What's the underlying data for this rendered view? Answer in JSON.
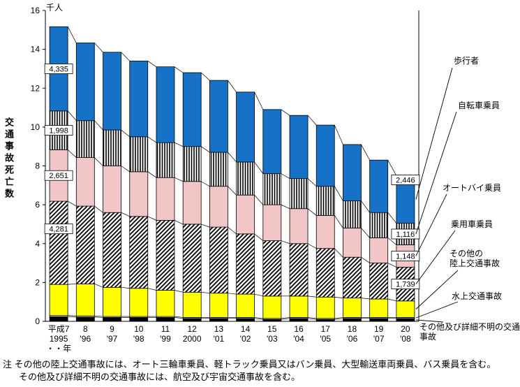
{
  "chart_data": {
    "type": "bar",
    "stacked": true,
    "unit_label": "千人",
    "ylabel": "交通事故死亡数",
    "ylim": [
      0,
      16
    ],
    "ytick_step": 2,
    "value_unit": "persons",
    "categories": [
      {
        "lines": [
          "平成7",
          "1995",
          "・・年"
        ]
      },
      {
        "lines": [
          "8",
          "'96"
        ]
      },
      {
        "lines": [
          "9",
          "'97"
        ]
      },
      {
        "lines": [
          "10",
          "'98"
        ]
      },
      {
        "lines": [
          "11",
          "'99"
        ]
      },
      {
        "lines": [
          "12",
          "2000"
        ]
      },
      {
        "lines": [
          "13",
          "'01"
        ]
      },
      {
        "lines": [
          "14",
          "'02"
        ]
      },
      {
        "lines": [
          "15",
          "'03"
        ]
      },
      {
        "lines": [
          "16",
          "'04"
        ]
      },
      {
        "lines": [
          "17",
          "'05"
        ]
      },
      {
        "lines": [
          "18",
          "'06"
        ]
      },
      {
        "lines": [
          "19",
          "'07"
        ]
      },
      {
        "lines": [
          "20",
          "'08"
        ]
      }
    ],
    "series": [
      {
        "key": "unknown_other",
        "name": "その他及び詳細不明の交通事故",
        "style": "black",
        "values": [
          240,
          220,
          200,
          200,
          200,
          150,
          150,
          150,
          100,
          150,
          100,
          150,
          150,
          150
        ]
      },
      {
        "key": "water",
        "name": "水上交通事故",
        "style": "white",
        "values": [
          60,
          60,
          50,
          50,
          50,
          50,
          50,
          50,
          50,
          50,
          50,
          50,
          50,
          50
        ]
      },
      {
        "key": "other_land",
        "name": "その他の陸上交通事故",
        "style": "yellow",
        "values": [
          1600,
          1650,
          1500,
          1450,
          1350,
          1300,
          1250,
          1200,
          1150,
          1100,
          1100,
          1000,
          950,
          850
        ]
      },
      {
        "key": "car",
        "name": "乗用車乗員",
        "style": "diagonal-hatch",
        "values": [
          4281,
          4000,
          3850,
          3700,
          3600,
          3500,
          3400,
          3100,
          2850,
          2700,
          2500,
          2100,
          1850,
          1739
        ]
      },
      {
        "key": "motorcycle",
        "name": "オートバイ乗員",
        "style": "pink",
        "values": [
          2651,
          2500,
          2400,
          2300,
          2200,
          2200,
          2100,
          2000,
          1850,
          1800,
          1700,
          1500,
          1300,
          1148
        ]
      },
      {
        "key": "bicycle",
        "name": "自転車乗員",
        "style": "vertical-stripes",
        "values": [
          1998,
          1900,
          1850,
          1800,
          1800,
          1800,
          1750,
          1700,
          1600,
          1550,
          1500,
          1400,
          1300,
          1116
        ]
      },
      {
        "key": "pedestrian",
        "name": "歩行者",
        "style": "blue",
        "values": [
          4335,
          4000,
          4000,
          3900,
          3900,
          3800,
          3700,
          3600,
          3300,
          3250,
          3150,
          2900,
          2700,
          2446
        ]
      }
    ],
    "annotations": [
      {
        "bar": 0,
        "series": "pedestrian",
        "text": "4,335",
        "dy": 0
      },
      {
        "bar": 0,
        "series": "bicycle",
        "text": "1,998",
        "dy": 0
      },
      {
        "bar": 0,
        "series": "motorcycle",
        "text": "2,651",
        "dy": 0
      },
      {
        "bar": 0,
        "series": "car",
        "text": "4,281",
        "dy": -20
      },
      {
        "bar": 13,
        "series": "pedestrian",
        "text": "2,446",
        "dy": -28
      },
      {
        "bar": 13,
        "series": "bicycle",
        "text": "1,116",
        "dy": 0
      },
      {
        "bar": 13,
        "series": "motorcycle",
        "text": "1,148",
        "dy": 0
      },
      {
        "bar": 13,
        "series": "car",
        "text": "1,739",
        "dy": 0
      }
    ],
    "colors": {
      "blue": "#1572C6",
      "pink": "#F2C6C6",
      "yellow": "#FFFF00",
      "black": "#000000",
      "white": "#FFFFFF"
    }
  },
  "legend": {
    "entries": [
      {
        "key": "pedestrian",
        "label": "歩行者"
      },
      {
        "key": "bicycle",
        "label": "自転車乗員"
      },
      {
        "key": "motorcycle",
        "label": "オートバイ乗員"
      },
      {
        "key": "car",
        "label": "乗用車乗員"
      },
      {
        "key": "other_land",
        "label": "その他の\n陸上交通事故"
      },
      {
        "key": "water",
        "label": "水上交通事故"
      },
      {
        "key": "unknown_other",
        "label": "その他及び詳細不明の交通事故"
      }
    ]
  },
  "note": {
    "line1": "注 その他の陸上交通事故には、オート三輪車乗員、軽トラック乗員又はバン乗員、大型輸送車両乗員、バス乗員を含む。",
    "line2": "その他及び詳細不明の交通事故には、航空及び宇宙交通事故を含む。"
  }
}
